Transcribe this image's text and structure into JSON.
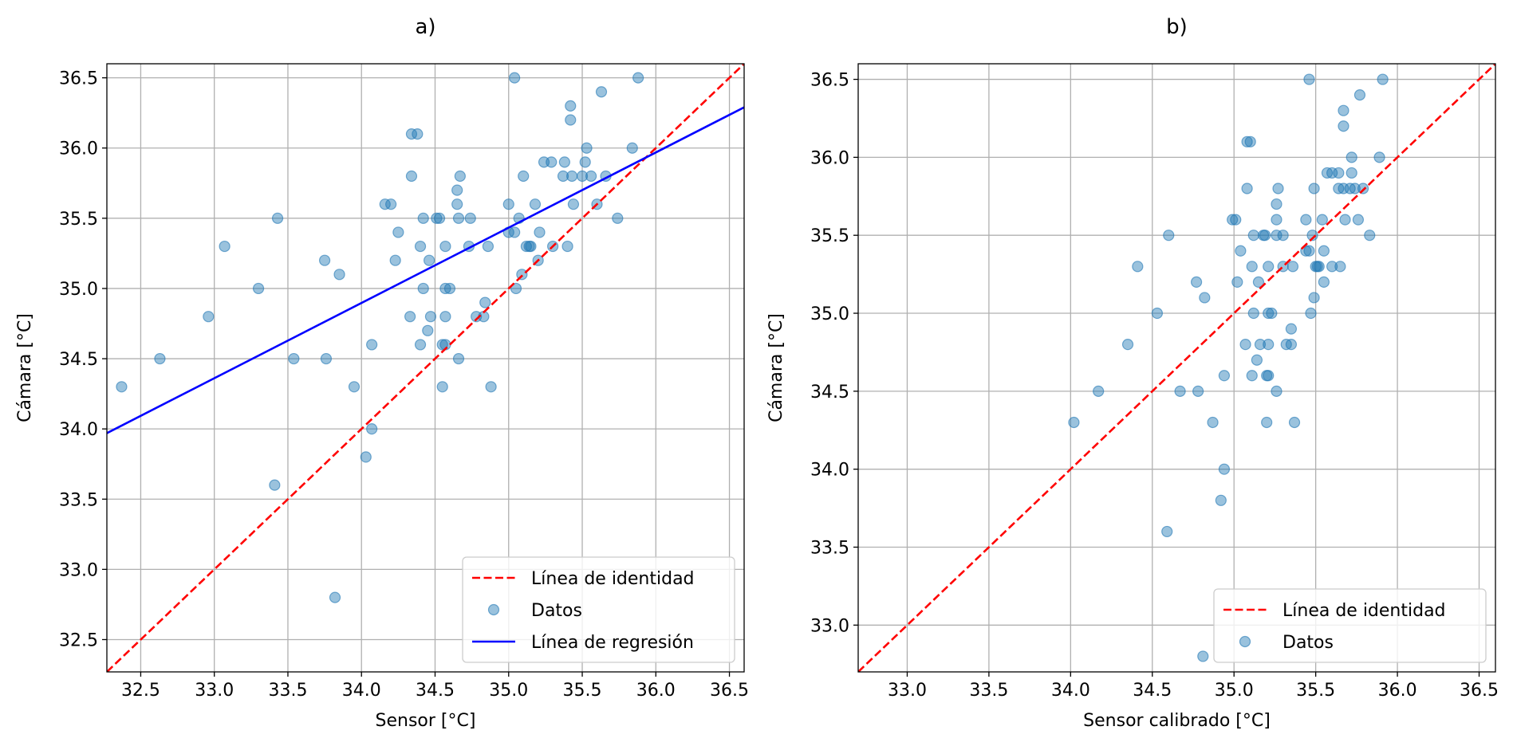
{
  "chart_data": [
    {
      "id": "a",
      "type": "scatter",
      "title": "a)",
      "xlabel": "Sensor [°C]",
      "ylabel": "Cámara [°C]",
      "xlim": [
        32.27,
        36.6
      ],
      "ylim": [
        32.27,
        36.6
      ],
      "xticks": [
        32.5,
        33.0,
        33.5,
        34.0,
        34.5,
        35.0,
        35.5,
        36.0,
        36.5
      ],
      "yticks": [
        32.5,
        33.0,
        33.5,
        34.0,
        34.5,
        35.0,
        35.5,
        36.0,
        36.5
      ],
      "grid": true,
      "legend_position": "lower-right",
      "legend": [
        {
          "label": "Línea de identidad",
          "kind": "dashed-line",
          "color": "#ff0000"
        },
        {
          "label": "Datos",
          "kind": "marker",
          "color": "#1f77b4"
        },
        {
          "label": "Línea de regresión",
          "kind": "solid-line",
          "color": "#0000ff"
        }
      ],
      "identity_line": {
        "color": "#ff0000",
        "style": "dashed"
      },
      "regression_line": {
        "color": "#0000ff",
        "points": [
          [
            32.27,
            33.97
          ],
          [
            36.6,
            36.29
          ]
        ]
      },
      "points": [
        [
          32.37,
          34.3
        ],
        [
          32.63,
          34.5
        ],
        [
          32.96,
          34.8
        ],
        [
          33.07,
          35.3
        ],
        [
          33.3,
          35.0
        ],
        [
          33.41,
          33.6
        ],
        [
          33.43,
          35.5
        ],
        [
          33.54,
          34.5
        ],
        [
          33.75,
          35.2
        ],
        [
          33.76,
          34.5
        ],
        [
          33.82,
          32.8
        ],
        [
          33.85,
          35.1
        ],
        [
          33.95,
          34.3
        ],
        [
          34.03,
          33.8
        ],
        [
          34.07,
          34.0
        ],
        [
          34.07,
          34.6
        ],
        [
          34.16,
          35.6
        ],
        [
          34.2,
          35.6
        ],
        [
          34.23,
          35.2
        ],
        [
          34.25,
          35.4
        ],
        [
          34.33,
          34.8
        ],
        [
          34.34,
          35.8
        ],
        [
          34.34,
          36.1
        ],
        [
          34.38,
          36.1
        ],
        [
          34.4,
          34.6
        ],
        [
          34.4,
          35.3
        ],
        [
          34.42,
          35.0
        ],
        [
          34.42,
          35.5
        ],
        [
          34.45,
          34.7
        ],
        [
          34.46,
          35.2
        ],
        [
          34.47,
          34.8
        ],
        [
          34.51,
          35.5
        ],
        [
          34.53,
          35.5
        ],
        [
          34.55,
          34.3
        ],
        [
          34.55,
          34.6
        ],
        [
          34.57,
          34.6
        ],
        [
          34.57,
          34.8
        ],
        [
          34.57,
          35.0
        ],
        [
          34.57,
          35.3
        ],
        [
          34.6,
          35.0
        ],
        [
          34.65,
          35.6
        ],
        [
          34.65,
          35.7
        ],
        [
          34.66,
          34.5
        ],
        [
          34.66,
          35.5
        ],
        [
          34.67,
          35.8
        ],
        [
          34.73,
          35.3
        ],
        [
          34.74,
          35.5
        ],
        [
          34.78,
          34.8
        ],
        [
          34.83,
          34.8
        ],
        [
          34.84,
          34.9
        ],
        [
          34.86,
          35.3
        ],
        [
          34.88,
          34.3
        ],
        [
          35.0,
          35.4
        ],
        [
          35.0,
          35.6
        ],
        [
          35.04,
          35.4
        ],
        [
          35.04,
          36.5
        ],
        [
          35.05,
          35.0
        ],
        [
          35.07,
          35.5
        ],
        [
          35.09,
          35.1
        ],
        [
          35.1,
          35.8
        ],
        [
          35.12,
          35.3
        ],
        [
          35.14,
          35.3
        ],
        [
          35.15,
          35.3
        ],
        [
          35.18,
          35.6
        ],
        [
          35.2,
          35.2
        ],
        [
          35.21,
          35.4
        ],
        [
          35.24,
          35.9
        ],
        [
          35.29,
          35.9
        ],
        [
          35.3,
          35.3
        ],
        [
          35.37,
          35.8
        ],
        [
          35.38,
          35.9
        ],
        [
          35.4,
          35.3
        ],
        [
          35.42,
          36.2
        ],
        [
          35.42,
          36.3
        ],
        [
          35.43,
          35.8
        ],
        [
          35.44,
          35.6
        ],
        [
          35.5,
          35.8
        ],
        [
          35.52,
          35.9
        ],
        [
          35.53,
          36.0
        ],
        [
          35.56,
          35.8
        ],
        [
          35.6,
          35.6
        ],
        [
          35.63,
          36.4
        ],
        [
          35.66,
          35.8
        ],
        [
          35.74,
          35.5
        ],
        [
          35.84,
          36.0
        ],
        [
          35.88,
          36.5
        ]
      ]
    },
    {
      "id": "b",
      "type": "scatter",
      "title": "b)",
      "xlabel": "Sensor calibrado [°C]",
      "ylabel": "Cámara [°C]",
      "xlim": [
        32.7,
        36.6
      ],
      "ylim": [
        32.7,
        36.6
      ],
      "xticks": [
        33.0,
        33.5,
        34.0,
        34.5,
        35.0,
        35.5,
        36.0,
        36.5
      ],
      "yticks": [
        33.0,
        33.5,
        34.0,
        34.5,
        35.0,
        35.5,
        36.0,
        36.5
      ],
      "grid": true,
      "legend_position": "lower-right",
      "legend": [
        {
          "label": "Línea de identidad",
          "kind": "dashed-line",
          "color": "#ff0000"
        },
        {
          "label": "Datos",
          "kind": "marker",
          "color": "#1f77b4"
        }
      ],
      "identity_line": {
        "color": "#ff0000",
        "style": "dashed"
      },
      "points": [
        [
          34.02,
          34.3
        ],
        [
          34.17,
          34.5
        ],
        [
          34.35,
          34.8
        ],
        [
          34.41,
          35.3
        ],
        [
          34.53,
          35.0
        ],
        [
          34.59,
          33.6
        ],
        [
          34.6,
          35.5
        ],
        [
          34.67,
          34.5
        ],
        [
          34.77,
          35.2
        ],
        [
          34.78,
          34.5
        ],
        [
          34.81,
          32.8
        ],
        [
          34.82,
          35.1
        ],
        [
          34.87,
          34.3
        ],
        [
          34.92,
          33.8
        ],
        [
          34.94,
          34.0
        ],
        [
          34.94,
          34.6
        ],
        [
          34.99,
          35.6
        ],
        [
          35.01,
          35.6
        ],
        [
          35.02,
          35.2
        ],
        [
          35.04,
          35.4
        ],
        [
          35.07,
          34.8
        ],
        [
          35.08,
          35.8
        ],
        [
          35.08,
          36.1
        ],
        [
          35.1,
          36.1
        ],
        [
          35.11,
          34.6
        ],
        [
          35.11,
          35.3
        ],
        [
          35.12,
          35.0
        ],
        [
          35.12,
          35.5
        ],
        [
          35.14,
          34.7
        ],
        [
          35.15,
          35.2
        ],
        [
          35.16,
          34.8
        ],
        [
          35.18,
          35.5
        ],
        [
          35.19,
          35.5
        ],
        [
          35.2,
          34.3
        ],
        [
          35.2,
          34.6
        ],
        [
          35.21,
          34.6
        ],
        [
          35.21,
          34.8
        ],
        [
          35.21,
          35.0
        ],
        [
          35.21,
          35.3
        ],
        [
          35.23,
          35.0
        ],
        [
          35.26,
          35.6
        ],
        [
          35.26,
          35.7
        ],
        [
          35.26,
          34.5
        ],
        [
          35.26,
          35.5
        ],
        [
          35.27,
          35.8
        ],
        [
          35.3,
          35.3
        ],
        [
          35.3,
          35.5
        ],
        [
          35.32,
          34.8
        ],
        [
          35.35,
          34.8
        ],
        [
          35.35,
          34.9
        ],
        [
          35.36,
          35.3
        ],
        [
          35.37,
          34.3
        ],
        [
          35.44,
          35.4
        ],
        [
          35.44,
          35.6
        ],
        [
          35.46,
          35.4
        ],
        [
          35.46,
          36.5
        ],
        [
          35.47,
          35.0
        ],
        [
          35.48,
          35.5
        ],
        [
          35.49,
          35.1
        ],
        [
          35.49,
          35.8
        ],
        [
          35.5,
          35.3
        ],
        [
          35.51,
          35.3
        ],
        [
          35.52,
          35.3
        ],
        [
          35.54,
          35.6
        ],
        [
          35.55,
          35.2
        ],
        [
          35.55,
          35.4
        ],
        [
          35.57,
          35.9
        ],
        [
          35.6,
          35.9
        ],
        [
          35.6,
          35.3
        ],
        [
          35.64,
          35.8
        ],
        [
          35.64,
          35.9
        ],
        [
          35.65,
          35.3
        ],
        [
          35.67,
          36.2
        ],
        [
          35.67,
          36.3
        ],
        [
          35.67,
          35.8
        ],
        [
          35.68,
          35.6
        ],
        [
          35.71,
          35.8
        ],
        [
          35.72,
          35.9
        ],
        [
          35.72,
          36.0
        ],
        [
          35.74,
          35.8
        ],
        [
          35.76,
          35.6
        ],
        [
          35.77,
          36.4
        ],
        [
          35.79,
          35.8
        ],
        [
          35.83,
          35.5
        ],
        [
          35.89,
          36.0
        ],
        [
          35.91,
          36.5
        ]
      ]
    }
  ]
}
